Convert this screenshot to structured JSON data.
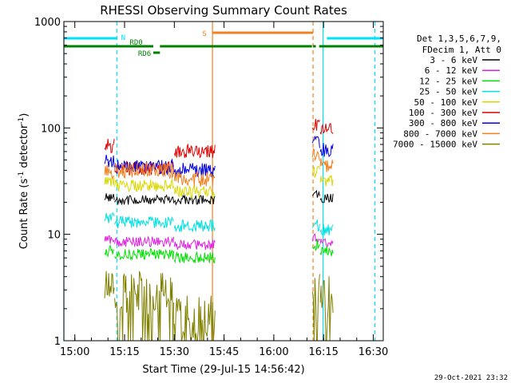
{
  "chart_data": {
    "type": "line",
    "title": "RHESSI Observing Summary Count Rates",
    "xlabel": "Start Time (29-Jul-15 14:56:42)",
    "ylabel": "Count Rate (s⁻¹ detector⁻¹)",
    "ylabel_parts": {
      "a": "Count Rate (s",
      "b": "-1",
      "c": " detector",
      "d": "-1",
      "e": ")"
    },
    "yscale": "log",
    "ylim": [
      1,
      1000
    ],
    "xlim": [
      "14:56:42",
      "16:33:00"
    ],
    "x_ticks": [
      "15:00",
      "15:15",
      "15:30",
      "15:45",
      "16:00",
      "16:15",
      "16:30"
    ],
    "y_ticks": [
      "1",
      "10",
      "100",
      "1000"
    ],
    "footer_date": "29-Oct-2021 23:32",
    "legend": {
      "header": [
        "Det 1,3,5,6,7,9,",
        "FDecim 1, Att 0"
      ],
      "placement": "right"
    },
    "series": [
      {
        "name": "3 - 6 keV",
        "color": "#000000",
        "segments": [
          {
            "start": "15:09:00",
            "end": "15:12:00",
            "value": 22
          },
          {
            "start": "15:12:00",
            "end": "15:30:00",
            "value": 21
          },
          {
            "start": "15:30:00",
            "end": "15:42:30",
            "value": 21
          },
          {
            "start": "16:11:40",
            "end": "16:14:00",
            "value": 24
          },
          {
            "start": "16:14:00",
            "end": "16:18:00",
            "value": 22
          }
        ]
      },
      {
        "name": "6 - 12 keV",
        "color": "#e020e0",
        "segments": [
          {
            "start": "15:09:00",
            "end": "15:12:00",
            "value": 9
          },
          {
            "start": "15:12:00",
            "end": "15:30:00",
            "value": 8.5
          },
          {
            "start": "15:30:00",
            "end": "15:42:30",
            "value": 8
          },
          {
            "start": "16:11:40",
            "end": "16:14:00",
            "value": 9
          },
          {
            "start": "16:14:00",
            "end": "16:18:00",
            "value": 8.5
          }
        ]
      },
      {
        "name": "12 - 25 keV",
        "color": "#00e000",
        "segments": [
          {
            "start": "15:09:00",
            "end": "15:12:00",
            "value": 7
          },
          {
            "start": "15:12:00",
            "end": "15:30:00",
            "value": 6.5
          },
          {
            "start": "15:30:00",
            "end": "15:42:30",
            "value": 6
          },
          {
            "start": "16:11:40",
            "end": "16:14:00",
            "value": 8
          },
          {
            "start": "16:14:00",
            "end": "16:18:00",
            "value": 7
          }
        ]
      },
      {
        "name": "25 - 50 keV",
        "color": "#00e0e0",
        "segments": [
          {
            "start": "15:09:00",
            "end": "15:12:00",
            "value": 14
          },
          {
            "start": "15:12:00",
            "end": "15:30:00",
            "value": 13
          },
          {
            "start": "15:30:00",
            "end": "15:42:30",
            "value": 12
          },
          {
            "start": "16:11:40",
            "end": "16:14:00",
            "value": 12
          },
          {
            "start": "16:14:00",
            "end": "16:18:00",
            "value": 11
          }
        ]
      },
      {
        "name": "50 - 100 keV",
        "color": "#d8d800",
        "segments": [
          {
            "start": "15:09:00",
            "end": "15:12:00",
            "value": 31
          },
          {
            "start": "15:12:00",
            "end": "15:30:00",
            "value": 29
          },
          {
            "start": "15:30:00",
            "end": "15:42:30",
            "value": 25
          },
          {
            "start": "16:11:40",
            "end": "16:14:00",
            "value": 38
          },
          {
            "start": "16:14:00",
            "end": "16:18:00",
            "value": 32
          }
        ]
      },
      {
        "name": "100 - 300 keV",
        "color": "#e00000",
        "segments": [
          {
            "start": "15:09:00",
            "end": "15:12:00",
            "value": 68
          },
          {
            "start": "15:12:00",
            "end": "15:30:00",
            "value": 42
          },
          {
            "start": "15:30:00",
            "end": "15:42:30",
            "value": 60
          },
          {
            "start": "16:11:40",
            "end": "16:14:00",
            "value": 105
          },
          {
            "start": "16:14:00",
            "end": "16:18:00",
            "value": 95
          }
        ]
      },
      {
        "name": "300 - 800 keV",
        "color": "#0000e0",
        "segments": [
          {
            "start": "15:09:00",
            "end": "15:12:00",
            "value": 48
          },
          {
            "start": "15:12:00",
            "end": "15:30:00",
            "value": 43
          },
          {
            "start": "15:30:00",
            "end": "15:42:30",
            "value": 40
          },
          {
            "start": "16:11:40",
            "end": "16:14:00",
            "value": 75
          },
          {
            "start": "16:14:00",
            "end": "16:18:00",
            "value": 62
          }
        ]
      },
      {
        "name": "800 - 7000 keV",
        "color": "#f08020",
        "segments": [
          {
            "start": "15:09:00",
            "end": "15:12:00",
            "value": 38
          },
          {
            "start": "15:12:00",
            "end": "15:30:00",
            "value": 40
          },
          {
            "start": "15:30:00",
            "end": "15:42:30",
            "value": 33
          },
          {
            "start": "16:11:40",
            "end": "16:14:00",
            "value": 55
          },
          {
            "start": "16:14:00",
            "end": "16:18:00",
            "value": 45
          }
        ]
      },
      {
        "name": "7000 - 15000 keV",
        "color": "#808000",
        "segments": [
          {
            "start": "15:09:00",
            "end": "15:12:00",
            "value": 2.8
          },
          {
            "start": "15:12:00",
            "end": "15:30:00",
            "value": 2.8
          },
          {
            "start": "15:30:00",
            "end": "15:42:30",
            "value": 1.6
          },
          {
            "start": "16:11:40",
            "end": "16:14:00",
            "value": 3.2
          },
          {
            "start": "16:14:00",
            "end": "16:18:00",
            "value": 2.5
          }
        ]
      }
    ],
    "flags": [
      {
        "label": "N",
        "color": "#00e0ff",
        "level": "upper",
        "intervals": [
          [
            "14:56:42",
            "15:12:40"
          ],
          [
            "16:16:00",
            "16:33:00"
          ]
        ]
      },
      {
        "label": "RD0",
        "color": "#008000",
        "level": "mid",
        "intervals": [
          [
            "14:56:42",
            "15:23:40"
          ],
          [
            "15:25:40",
            "16:11:30"
          ],
          [
            "16:11:50",
            "16:12:40"
          ],
          [
            "16:13:40",
            "16:33:00"
          ]
        ]
      },
      {
        "label": "RD6",
        "color": "#008000",
        "level": "low",
        "intervals": [
          [
            "15:23:40",
            "15:25:40"
          ]
        ]
      },
      {
        "label": "S",
        "color": "#f08020",
        "level": "top",
        "intervals": [
          [
            "15:41:30",
            "16:11:50"
          ]
        ]
      }
    ],
    "vertical_markers": [
      {
        "time": "14:56:42",
        "color": "#00e0ff",
        "style": "solid"
      },
      {
        "time": "15:12:40",
        "color": "#00e0ff",
        "style": "dashed"
      },
      {
        "time": "15:41:30",
        "color": "#f08020",
        "style": "solid"
      },
      {
        "time": "16:11:50",
        "color": "#f08020",
        "style": "dashed"
      },
      {
        "time": "16:14:50",
        "color": "#00e0ff",
        "style": "solid"
      },
      {
        "time": "16:30:30",
        "color": "#00e0ff",
        "style": "dashed"
      }
    ]
  }
}
